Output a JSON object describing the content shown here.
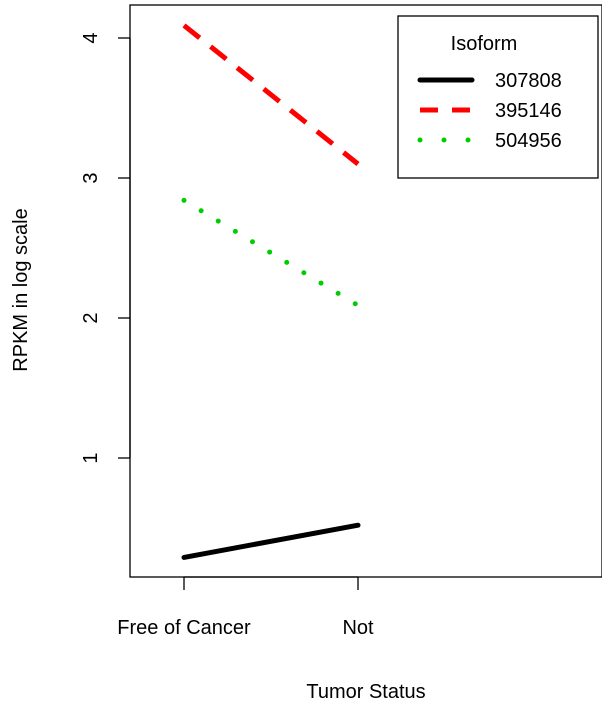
{
  "chart_data": {
    "type": "line",
    "xlabel": "Tumor Status",
    "ylabel": "RPKM in log scale",
    "categories": [
      "Free of Cancer",
      "Not"
    ],
    "yticks": [
      1,
      2,
      3,
      4
    ],
    "ylim": [
      0.2,
      4.2
    ],
    "grid": false,
    "legend": {
      "title": "Isoform",
      "position": "top-right"
    },
    "series": [
      {
        "name": "307808",
        "values": [
          0.29,
          0.52
        ],
        "color": "#000000",
        "dash": "solid"
      },
      {
        "name": "395146",
        "values": [
          4.09,
          3.1
        ],
        "color": "#ff0000",
        "dash": "dashed"
      },
      {
        "name": "504956",
        "values": [
          2.84,
          2.09
        ],
        "color": "#00cd00",
        "dash": "dotted"
      }
    ]
  }
}
